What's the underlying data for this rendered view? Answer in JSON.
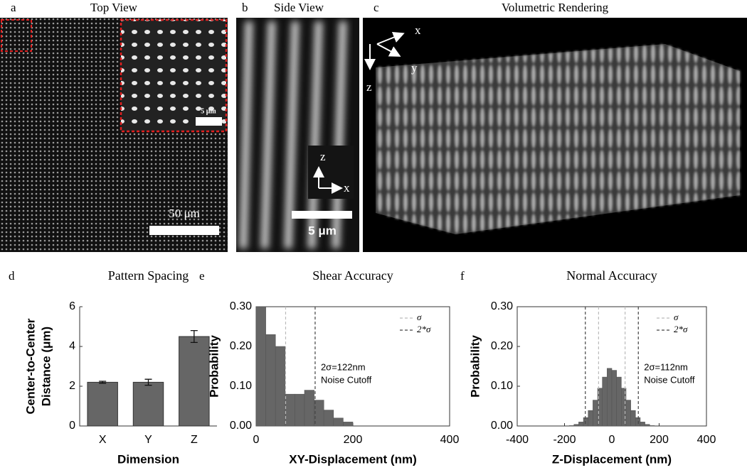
{
  "image_panels": [
    {
      "label": "a",
      "title": "Top View",
      "scale_bar": "50 μm",
      "inset_scale_bar": "5 μm"
    },
    {
      "label": "b",
      "title": "Side View",
      "axes": [
        "z",
        "x"
      ],
      "scale_bar": "5 μm"
    },
    {
      "label": "c",
      "title": "Volumetric Rendering",
      "axes": [
        "x",
        "y",
        "z"
      ]
    }
  ],
  "chart_data": [
    {
      "type": "bar",
      "label": "d",
      "title": "Pattern Spacing",
      "xlabel": "Dimension",
      "ylabel": [
        "Center-to-Center",
        "Distance (μm)"
      ],
      "categories": [
        "X",
        "Y",
        "Z"
      ],
      "values": [
        2.2,
        2.2,
        4.5
      ],
      "errors": [
        0.05,
        0.15,
        0.3
      ],
      "color": "#666666",
      "ylim": [
        0,
        6
      ],
      "yticks": [
        0,
        2,
        4,
        6
      ]
    },
    {
      "type": "histogram",
      "label": "e",
      "title": "Shear Accuracy",
      "xlabel": "XY-Displacement (nm)",
      "ylabel": "Probability",
      "bins": [
        0,
        20,
        40,
        60,
        80,
        100,
        120,
        140,
        160,
        180,
        200
      ],
      "values": [
        0.3,
        0.23,
        0.2,
        0.08,
        0.08,
        0.09,
        0.065,
        0.04,
        0.02,
        0.01
      ],
      "color": "#666666",
      "xlim": [
        0,
        400
      ],
      "xticks": [
        0,
        200,
        400
      ],
      "ylim": [
        0,
        0.3
      ],
      "yticks": [
        {
          "value": 0,
          "label": "0.00"
        },
        {
          "value": 0.1,
          "label": "0.10"
        },
        {
          "value": 0.2,
          "label": "0.20"
        },
        {
          "value": 0.3,
          "label": "0.30"
        }
      ],
      "reference_lines": [
        {
          "name": "σ",
          "values": [
            61
          ],
          "color": "#bbbbbb"
        },
        {
          "name": "2*σ",
          "values": [
            122
          ],
          "color": "#444444"
        }
      ],
      "annotation": [
        "2σ=122nm",
        "Noise Cutoff"
      ]
    },
    {
      "type": "histogram",
      "label": "f",
      "title": "Normal Accuracy",
      "xlabel": "Z-Displacement (nm)",
      "ylabel": "Probability",
      "bins": [
        -200,
        -180,
        -160,
        -140,
        -120,
        -100,
        -80,
        -60,
        -40,
        -20,
        0,
        20,
        40,
        60,
        80,
        100,
        120,
        140,
        160,
        180,
        200
      ],
      "values": [
        0.0,
        0.001,
        0.004,
        0.01,
        0.021,
        0.039,
        0.065,
        0.095,
        0.123,
        0.145,
        0.14,
        0.123,
        0.095,
        0.065,
        0.039,
        0.021,
        0.01,
        0.004,
        0.001,
        0.0
      ],
      "color": "#666666",
      "xlim": [
        -400,
        400
      ],
      "xticks": [
        -400,
        -200,
        0,
        200,
        400
      ],
      "ylim": [
        0,
        0.3
      ],
      "yticks": [
        {
          "value": 0,
          "label": "0.00"
        },
        {
          "value": 0.1,
          "label": "0.10"
        },
        {
          "value": 0.2,
          "label": "0.20"
        },
        {
          "value": 0.3,
          "label": "0.30"
        }
      ],
      "reference_lines": [
        {
          "name": "σ",
          "values": [
            -56,
            56
          ],
          "color": "#bbbbbb"
        },
        {
          "name": "2*σ",
          "values": [
            -112,
            112
          ],
          "color": "#444444"
        }
      ],
      "annotation": [
        "2σ=112nm",
        "Noise Cutoff"
      ]
    }
  ]
}
